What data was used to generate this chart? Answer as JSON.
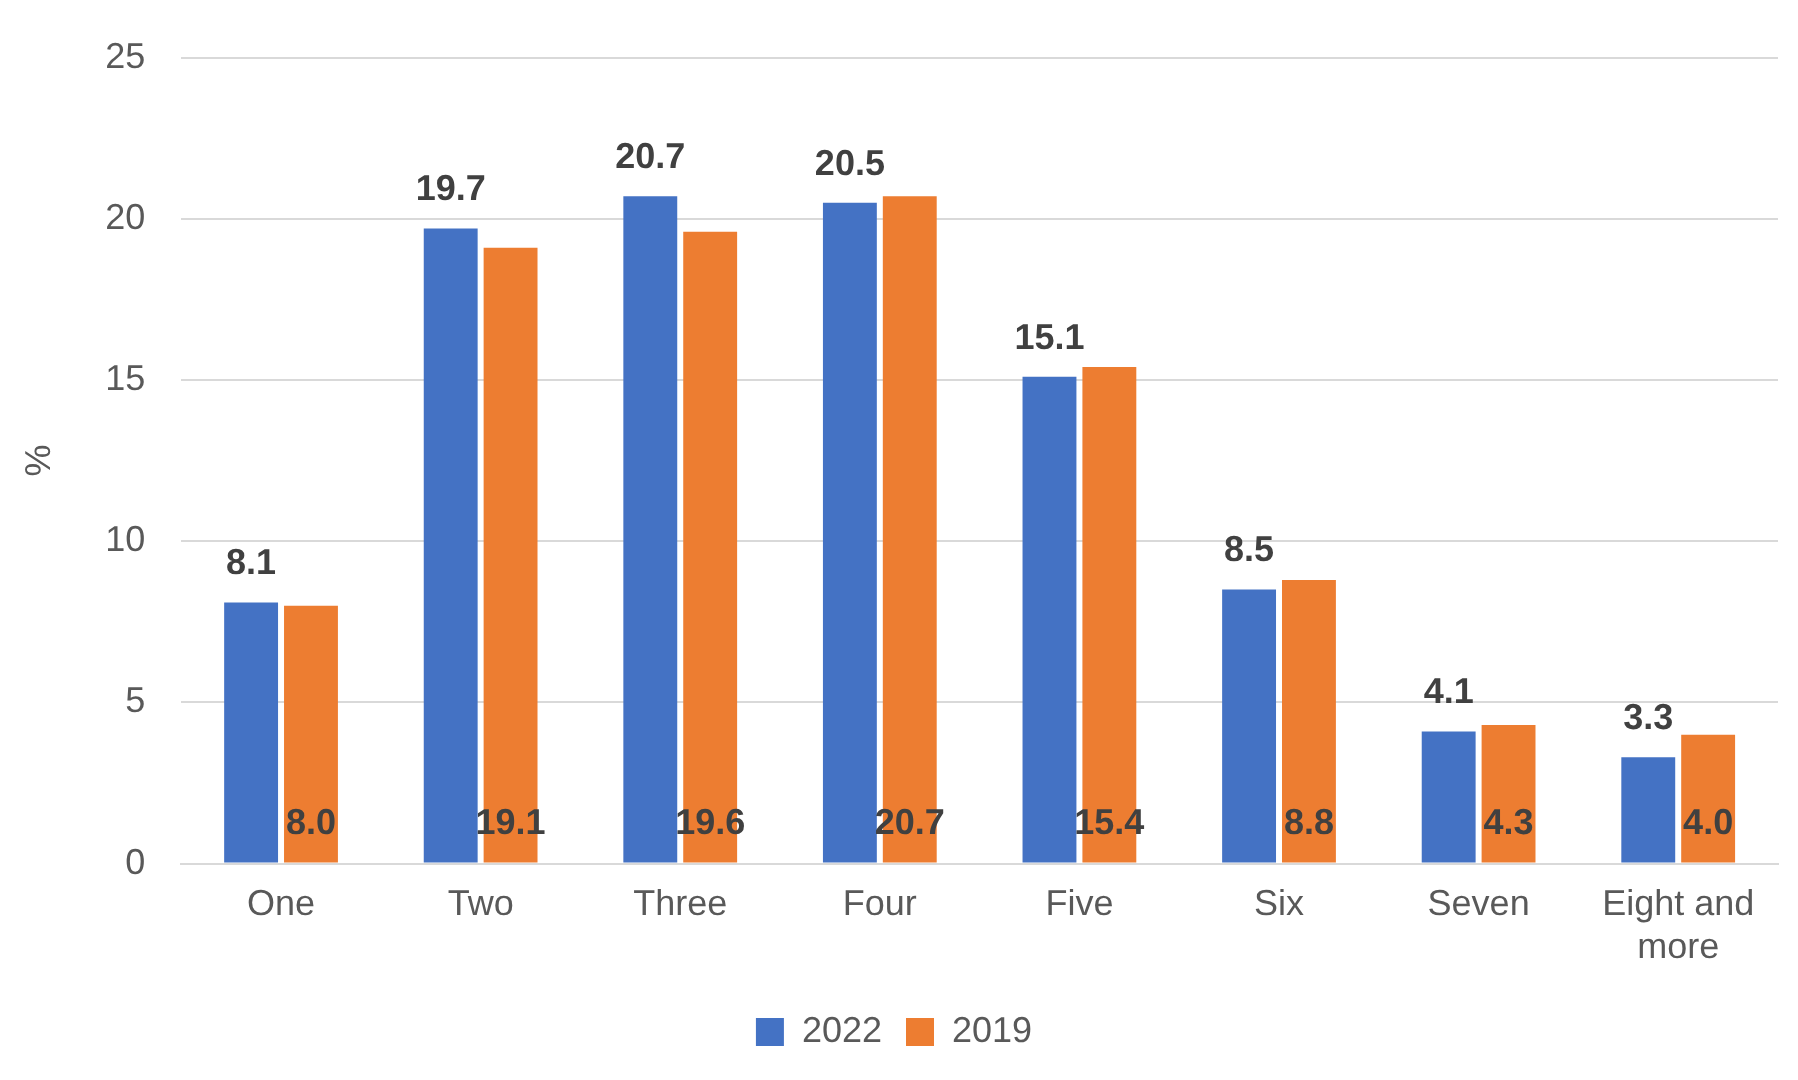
{
  "chart_data": {
    "type": "bar",
    "ylabel": "%",
    "categories": [
      "One",
      "Two",
      "Three",
      "Four",
      "Five",
      "Six",
      "Seven",
      "Eight and more"
    ],
    "series": [
      {
        "name": "2022",
        "color": "#4472c4",
        "values": [
          8.1,
          19.7,
          20.7,
          20.5,
          15.1,
          8.5,
          4.1,
          3.3
        ],
        "value_labels": [
          "8.1",
          "19.7",
          "20.7",
          "20.5",
          "15.1",
          "8.5",
          "4.1",
          "3.3"
        ]
      },
      {
        "name": "2019",
        "color": "#ed7d31",
        "values": [
          8.0,
          19.1,
          19.6,
          20.7,
          15.4,
          8.8,
          4.3,
          4.0
        ],
        "value_labels": [
          "8.0",
          "19.1",
          "19.6",
          "20.7",
          "15.4",
          "8.8",
          "4.3",
          "4.0"
        ]
      }
    ],
    "ylim": [
      0,
      25
    ],
    "yticks": [
      0,
      5,
      10,
      15,
      20,
      25
    ],
    "grid": "y",
    "legend": "bottom"
  }
}
